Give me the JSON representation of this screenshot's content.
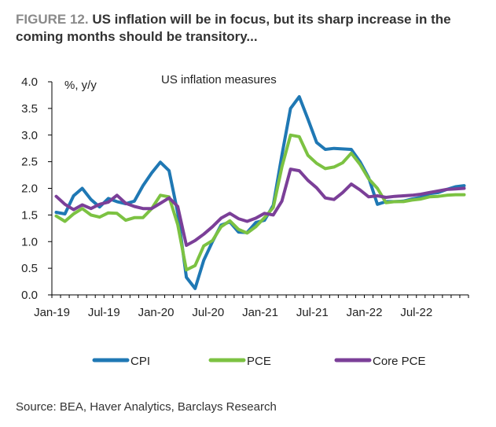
{
  "figure": {
    "label": "FIGURE 12.",
    "title": "US inflation will be in focus, but its sharp increase in the coming months should be transitory...",
    "source": "Source: BEA, Haver Analytics, Barclays Research"
  },
  "chart_data": {
    "type": "line",
    "title": "US inflation measures",
    "unit_label": "%, y/y",
    "xlabel": "",
    "ylabel": "",
    "ylim": [
      0,
      4
    ],
    "yticks": [
      "0.0",
      "0.5",
      "1.0",
      "1.5",
      "2.0",
      "2.5",
      "3.0",
      "3.5",
      "4.0"
    ],
    "xticks": [
      "Jan-19",
      "Jul-19",
      "Jan-20",
      "Jul-20",
      "Jan-21",
      "Jul-21",
      "Jan-22",
      "Jul-22"
    ],
    "x": [
      "Jan-19",
      "Feb-19",
      "Mar-19",
      "Apr-19",
      "May-19",
      "Jun-19",
      "Jul-19",
      "Aug-19",
      "Sep-19",
      "Oct-19",
      "Nov-19",
      "Dec-19",
      "Jan-20",
      "Feb-20",
      "Mar-20",
      "Apr-20",
      "May-20",
      "Jun-20",
      "Jul-20",
      "Aug-20",
      "Sep-20",
      "Oct-20",
      "Nov-20",
      "Dec-20",
      "Jan-21",
      "Feb-21",
      "Mar-21",
      "Apr-21",
      "May-21",
      "Jun-21",
      "Jul-21",
      "Aug-21",
      "Sep-21",
      "Oct-21",
      "Nov-21",
      "Dec-21",
      "Jan-22",
      "Feb-22",
      "Mar-22",
      "Apr-22",
      "May-22",
      "Jun-22",
      "Jul-22",
      "Aug-22",
      "Sep-22",
      "Oct-22",
      "Nov-22",
      "Dec-22"
    ],
    "series": [
      {
        "name": "CPI",
        "color": "#1f78b4",
        "values": [
          1.55,
          1.52,
          1.86,
          2.0,
          1.79,
          1.65,
          1.81,
          1.75,
          1.71,
          1.76,
          2.05,
          2.29,
          2.49,
          2.33,
          1.54,
          0.33,
          0.12,
          0.65,
          1.0,
          1.31,
          1.37,
          1.18,
          1.17,
          1.36,
          1.4,
          1.68,
          2.62,
          3.5,
          3.72,
          3.3,
          2.86,
          2.73,
          2.75,
          2.74,
          2.73,
          2.5,
          2.2,
          1.7,
          1.75,
          1.75,
          1.76,
          1.8,
          1.83,
          1.9,
          1.92,
          1.98,
          2.03,
          2.05
        ]
      },
      {
        "name": "PCE",
        "color": "#7cc242",
        "values": [
          1.48,
          1.38,
          1.52,
          1.62,
          1.5,
          1.46,
          1.54,
          1.53,
          1.4,
          1.45,
          1.45,
          1.62,
          1.87,
          1.84,
          1.32,
          0.47,
          0.55,
          0.92,
          1.02,
          1.28,
          1.39,
          1.23,
          1.16,
          1.28,
          1.45,
          1.64,
          2.4,
          3.0,
          2.97,
          2.62,
          2.47,
          2.37,
          2.4,
          2.48,
          2.66,
          2.45,
          2.18,
          2.0,
          1.73,
          1.75,
          1.75,
          1.78,
          1.8,
          1.84,
          1.85,
          1.87,
          1.88,
          1.88
        ]
      },
      {
        "name": "Core PCE",
        "color": "#7b3f98",
        "values": [
          1.85,
          1.7,
          1.6,
          1.69,
          1.62,
          1.7,
          1.74,
          1.87,
          1.72,
          1.66,
          1.62,
          1.62,
          1.72,
          1.82,
          1.66,
          0.93,
          1.02,
          1.14,
          1.28,
          1.44,
          1.53,
          1.43,
          1.38,
          1.44,
          1.53,
          1.5,
          1.76,
          2.36,
          2.33,
          2.15,
          2.01,
          1.82,
          1.79,
          1.92,
          2.08,
          1.97,
          1.84,
          1.86,
          1.83,
          1.85,
          1.86,
          1.87,
          1.89,
          1.92,
          1.95,
          1.98,
          1.99,
          2.0
        ]
      }
    ],
    "legend_placement": "bottom",
    "grid": false
  }
}
